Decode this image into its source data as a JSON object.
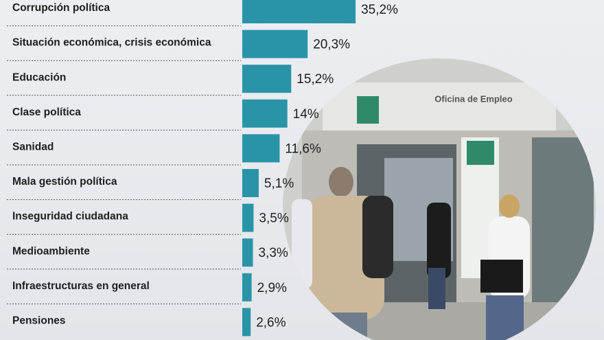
{
  "chart_data": {
    "type": "bar",
    "orientation": "horizontal",
    "color": "#2a94a7",
    "categories": [
      "Corrupción política",
      "Situación económica, crisis económica",
      "Educación",
      "Clase política",
      "Sanidad",
      "Mala gestión política",
      "Inseguridad ciudadana",
      "Medioambiente",
      "Infraestructuras en general",
      "Pensiones"
    ],
    "values": [
      35.2,
      20.3,
      15.2,
      14,
      11.6,
      5.1,
      3.5,
      3.3,
      2.9,
      2.6
    ],
    "value_labels": [
      "35,2%",
      "20,3%",
      "15,2%",
      "14%",
      "11,6%",
      "5,1%",
      "3,5%",
      "3,3%",
      "2,9%",
      "2,6%"
    ]
  }
}
